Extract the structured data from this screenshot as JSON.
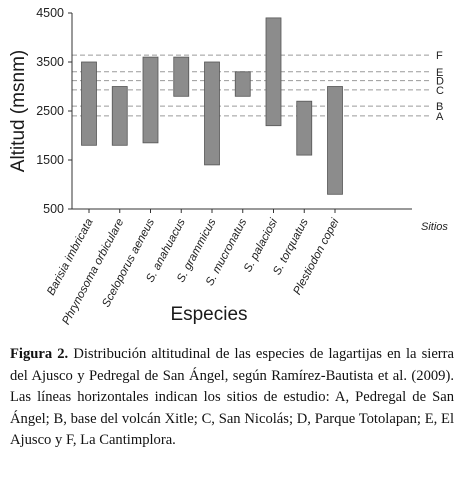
{
  "chart_data": {
    "type": "floating-bar",
    "ylabel": "Altitud (msnm)",
    "xlabel": "Especies",
    "ylim": [
      500,
      4500
    ],
    "yticks": [
      500,
      1500,
      2500,
      3500,
      4500
    ],
    "categories": [
      "Barisia imbricata",
      "Phrynosoma orbiculare",
      "Sceloporus aeneus",
      "S. anahuacus",
      "S. grammicus",
      "S. mucronatus",
      "S. palaciosi",
      "S. torquatus",
      "Plestiodon copei"
    ],
    "ranges": [
      [
        1800,
        3500
      ],
      [
        1800,
        3000
      ],
      [
        1850,
        3600
      ],
      [
        2800,
        3600
      ],
      [
        1400,
        3500
      ],
      [
        2800,
        3300
      ],
      [
        2200,
        4400
      ],
      [
        1600,
        2700
      ],
      [
        800,
        3000
      ]
    ],
    "sites_label": "Sitios",
    "sites": [
      {
        "code": "F",
        "altitude": 3640
      },
      {
        "code": "E",
        "altitude": 3300
      },
      {
        "code": "D",
        "altitude": 3120
      },
      {
        "code": "C",
        "altitude": 2930
      },
      {
        "code": "B",
        "altitude": 2600
      },
      {
        "code": "A",
        "altitude": 2400
      }
    ],
    "bar_color": "#8c8c8c",
    "bar_stroke": "#555555",
    "line_color": "#9a9a9a"
  },
  "caption": {
    "label": "Figura 2.",
    "text": " Distribución altitudinal de las especies de lagartijas en la sierra del Ajusco y Pedregal de San Ángel, según Ramírez-Bautista et al. (2009). Las líneas horizontales indican los sitios de estudio: A, Pedregal de San Ángel; B, base del volcán Xitle; C, San Nicolás; D, Parque Totolapan; E, El Ajusco y F, La Cantimplora."
  }
}
